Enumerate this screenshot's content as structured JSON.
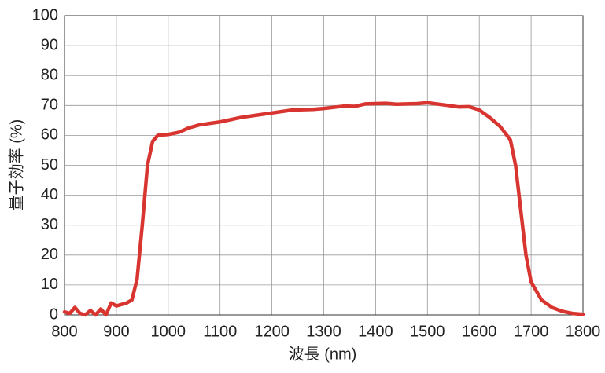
{
  "chart_data": {
    "type": "line",
    "x_label": "波長 (nm)",
    "y_label": "量子効率 (%)",
    "x": [
      800,
      810,
      820,
      830,
      840,
      850,
      860,
      870,
      880,
      890,
      900,
      910,
      920,
      930,
      940,
      950,
      960,
      970,
      980,
      1000,
      1020,
      1040,
      1060,
      1080,
      1100,
      1140,
      1180,
      1200,
      1240,
      1280,
      1300,
      1340,
      1360,
      1380,
      1420,
      1440,
      1480,
      1500,
      1540,
      1560,
      1580,
      1600,
      1620,
      1640,
      1660,
      1670,
      1680,
      1690,
      1700,
      1720,
      1740,
      1760,
      1780,
      1800
    ],
    "series": [
      {
        "color": "#d93530",
        "values": [
          1,
          0.5,
          2.5,
          0.5,
          0,
          1.5,
          0,
          2,
          0,
          4,
          3,
          3.5,
          4,
          5,
          12,
          30,
          50,
          58,
          60,
          60.3,
          61,
          62.5,
          63.5,
          64,
          64.5,
          66,
          67,
          67.5,
          68.5,
          68.7,
          69,
          69.8,
          69.7,
          70.5,
          70.7,
          70.4,
          70.6,
          70.9,
          70,
          69.5,
          69.6,
          68.5,
          66,
          63,
          58.5,
          50,
          35,
          20,
          11,
          5,
          2.5,
          1.2,
          0.5,
          0.2
        ]
      }
    ],
    "xlim": [
      800,
      1800
    ],
    "ylim": [
      0,
      100
    ],
    "xticks": [
      800,
      900,
      1000,
      1100,
      1200,
      1300,
      1400,
      1500,
      1600,
      1700,
      1800
    ],
    "yticks": [
      0,
      10,
      20,
      30,
      40,
      50,
      60,
      70,
      80,
      90,
      100
    ],
    "grid": true
  }
}
